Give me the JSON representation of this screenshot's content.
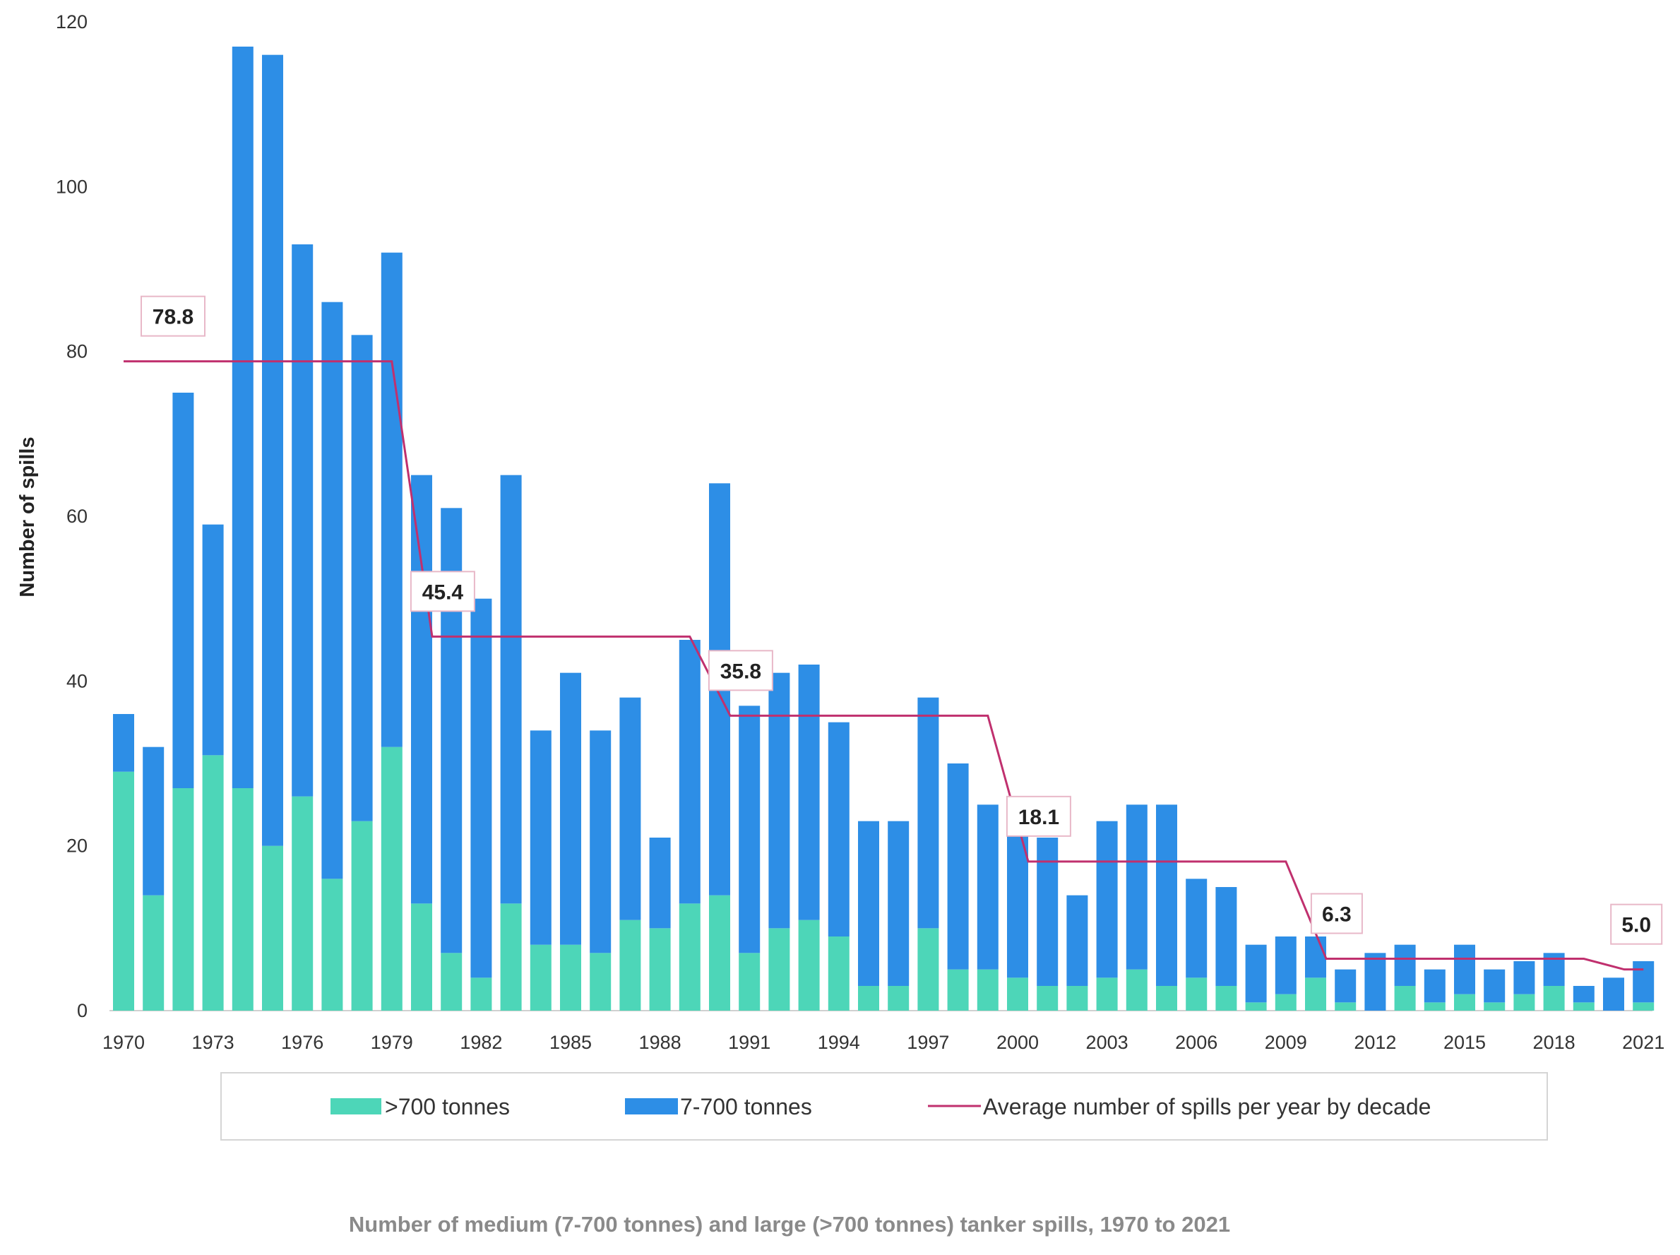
{
  "chart_data": {
    "type": "bar",
    "stacked": true,
    "caption": "Number of medium (7-700 tonnes) and large (>700 tonnes) tanker spills, 1970 to 2021",
    "ylabel": "Number of spills",
    "xlabel": "",
    "ylim": [
      0,
      120
    ],
    "yticks": [
      0,
      20,
      40,
      60,
      80,
      100,
      120
    ],
    "xtick_labels": [
      "1970",
      "1973",
      "1976",
      "1979",
      "1982",
      "1985",
      "1988",
      "1991",
      "1994",
      "1997",
      "2000",
      "2003",
      "2006",
      "2009",
      "2012",
      "2015",
      "2018",
      "2021"
    ],
    "categories": [
      1970,
      1971,
      1972,
      1973,
      1974,
      1975,
      1976,
      1977,
      1978,
      1979,
      1980,
      1981,
      1982,
      1983,
      1984,
      1985,
      1986,
      1987,
      1988,
      1989,
      1990,
      1991,
      1992,
      1993,
      1994,
      1995,
      1996,
      1997,
      1998,
      1999,
      2000,
      2001,
      2002,
      2003,
      2004,
      2005,
      2006,
      2007,
      2008,
      2009,
      2010,
      2011,
      2012,
      2013,
      2014,
      2015,
      2016,
      2017,
      2018,
      2019,
      2020,
      2021
    ],
    "series": [
      {
        "name": ">700 tonnes",
        "color": "#4dd6b8",
        "values": [
          29,
          14,
          27,
          31,
          27,
          20,
          26,
          16,
          23,
          32,
          13,
          7,
          4,
          13,
          8,
          8,
          7,
          11,
          10,
          13,
          14,
          7,
          10,
          11,
          9,
          3,
          3,
          10,
          5,
          5,
          4,
          3,
          3,
          4,
          5,
          3,
          4,
          3,
          1,
          2,
          4,
          1,
          0,
          3,
          1,
          2,
          1,
          2,
          3,
          1,
          0,
          1
        ]
      },
      {
        "name": "7-700 tonnes",
        "color": "#2d8ee6",
        "values": [
          7,
          18,
          48,
          28,
          90,
          96,
          67,
          70,
          59,
          60,
          52,
          54,
          46,
          52,
          26,
          33,
          27,
          27,
          11,
          32,
          50,
          30,
          31,
          31,
          26,
          20,
          20,
          28,
          25,
          20,
          21,
          18,
          11,
          19,
          20,
          22,
          12,
          12,
          7,
          7,
          5,
          4,
          7,
          5,
          4,
          6,
          4,
          4,
          4,
          2,
          4,
          5
        ]
      }
    ],
    "average_line": {
      "name": "Average number of spills per year by decade",
      "color": "#c0306e",
      "decades": [
        {
          "start": 1970,
          "end": 1979,
          "value": 78.8,
          "label": "78.8"
        },
        {
          "start": 1980,
          "end": 1989,
          "value": 45.4,
          "label": "45.4"
        },
        {
          "start": 1990,
          "end": 1999,
          "value": 35.8,
          "label": "35.8"
        },
        {
          "start": 2000,
          "end": 2009,
          "value": 18.1,
          "label": "18.1"
        },
        {
          "start": 2010,
          "end": 2019,
          "value": 6.3,
          "label": "6.3"
        },
        {
          "start": 2020,
          "end": 2021,
          "value": 5.0,
          "label": "5.0"
        }
      ]
    },
    "legend": {
      "position": "bottom",
      "items": [
        ">700 tonnes",
        "7-700 tonnes",
        "Average number of spills per year by decade"
      ]
    }
  }
}
